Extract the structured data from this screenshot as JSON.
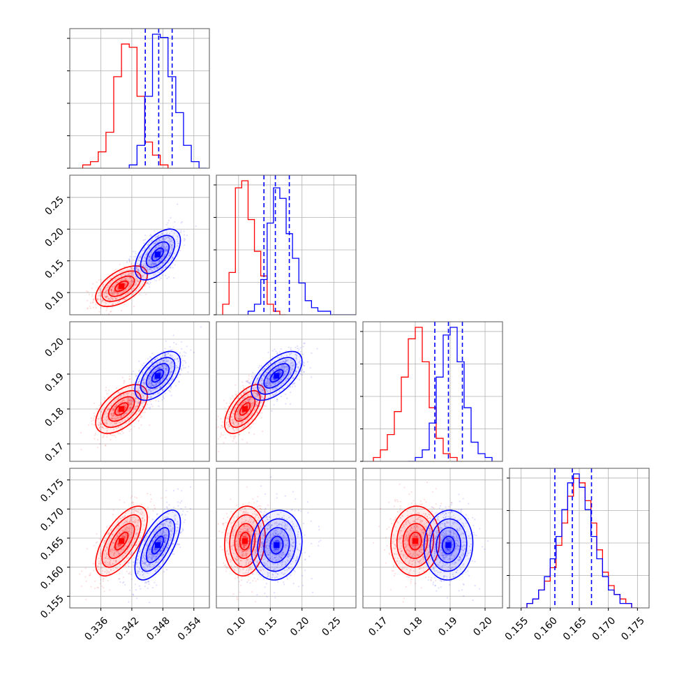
{
  "chart_data": {
    "type": "corner",
    "title": "",
    "parameters": [
      {
        "ticks": [
          0.336,
          0.342,
          0.348,
          0.354
        ],
        "tick_labels": [
          "0.336",
          "0.342",
          "0.348",
          "0.354"
        ],
        "range": [
          0.33,
          0.357
        ]
      },
      {
        "ticks": [
          0.1,
          0.15,
          0.2,
          0.25
        ],
        "tick_labels": [
          "0.10",
          "0.15",
          "0.20",
          "0.25"
        ],
        "range": [
          0.065,
          0.285
        ]
      },
      {
        "ticks": [
          0.17,
          0.18,
          0.19,
          0.2
        ],
        "tick_labels": [
          "0.17",
          "0.18",
          "0.19",
          "0.20"
        ],
        "range": [
          0.165,
          0.205
        ]
      },
      {
        "ticks": [
          0.155,
          0.16,
          0.165,
          0.17,
          0.175
        ],
        "tick_labels": [
          "0.155",
          "0.160",
          "0.165",
          "0.170",
          "0.175"
        ],
        "range": [
          0.153,
          0.177
        ]
      }
    ],
    "series": [
      {
        "color": "#ff0000",
        "means": [
          0.34,
          0.11,
          0.18,
          0.1645
        ],
        "stds": [
          0.0025,
          0.016,
          0.0035,
          0.003
        ],
        "correlations": [
          [
            0,
            1,
            0.55
          ],
          [
            0,
            2,
            0.55
          ],
          [
            0,
            3,
            0.65
          ],
          [
            1,
            2,
            0.6
          ],
          [
            1,
            3,
            0.1
          ],
          [
            2,
            3,
            0.05
          ]
        ],
        "histograms": [
          {
            "edges": [
              0.3325,
              0.334,
              0.3355,
              0.337,
              0.3385,
              0.34,
              0.3415,
              0.343,
              0.3445,
              0.346,
              0.3475,
              0.349
            ],
            "counts": [
              1,
              2,
              5,
              11,
              28,
              38,
              37,
              22,
              8,
              4,
              1
            ]
          },
          {
            "edges": [
              0.075,
              0.085,
              0.095,
              0.105,
              0.115,
              0.125,
              0.135,
              0.145,
              0.155,
              0.165,
              0.175
            ],
            "counts": [
              3,
              12,
              36,
              38,
              27,
              18,
              11,
              3,
              1,
              0
            ]
          },
          {
            "edges": [
              0.168,
              0.17,
              0.172,
              0.174,
              0.176,
              0.178,
              0.18,
              0.182,
              0.184,
              0.186,
              0.188,
              0.19,
              0.192
            ],
            "counts": [
              1,
              3,
              7,
              13,
              22,
              32,
              35,
              26,
              14,
              6,
              2,
              1
            ]
          },
          {
            "edges": [
              0.155,
              0.156,
              0.157,
              0.158,
              0.159,
              0.16,
              0.161,
              0.162,
              0.163,
              0.164,
              0.165,
              0.166,
              0.167,
              0.168,
              0.169,
              0.17,
              0.171,
              0.172,
              0.173,
              0.174,
              0.175
            ],
            "counts": [
              0,
              1,
              2,
              4,
              6,
              9,
              14,
              19,
              25,
              29,
              28,
              24,
              19,
              13,
              8,
              5,
              3,
              2,
              1,
              0
            ]
          }
        ]
      },
      {
        "color": "#0000ff",
        "means": [
          0.347,
          0.16,
          0.1895,
          0.1638
        ],
        "stds": [
          0.0022,
          0.02,
          0.0035,
          0.003
        ],
        "correlations": [
          [
            0,
            1,
            0.55
          ],
          [
            0,
            2,
            0.55
          ],
          [
            0,
            3,
            0.65
          ],
          [
            1,
            2,
            0.6
          ],
          [
            1,
            3,
            0.1
          ],
          [
            2,
            3,
            0.05
          ]
        ],
        "histograms": [
          {
            "edges": [
              0.3415,
              0.343,
              0.3445,
              0.346,
              0.3475,
              0.349,
              0.3505,
              0.352,
              0.3535,
              0.355,
              0.3565
            ],
            "counts": [
              1,
              7,
              22,
              41,
              40,
              28,
              17,
              7,
              2,
              0
            ]
          },
          {
            "edges": [
              0.115,
              0.125,
              0.135,
              0.145,
              0.155,
              0.165,
              0.175,
              0.185,
              0.195,
              0.205,
              0.215,
              0.225,
              0.235,
              0.245,
              0.255,
              0.265,
              0.275,
              0.285
            ],
            "counts": [
              1,
              3,
              10,
              26,
              36,
              33,
              23,
              16,
              9,
              4,
              2,
              1,
              1,
              0,
              0,
              0,
              0
            ]
          },
          {
            "edges": [
              0.178,
              0.18,
              0.182,
              0.184,
              0.186,
              0.188,
              0.19,
              0.192,
              0.194,
              0.196,
              0.198,
              0.2,
              0.202
            ],
            "counts": [
              0,
              1,
              3,
              10,
              22,
              33,
              35,
              26,
              14,
              5,
              2,
              1
            ]
          },
          {
            "edges": [
              0.155,
              0.156,
              0.157,
              0.158,
              0.159,
              0.16,
              0.161,
              0.162,
              0.163,
              0.164,
              0.165,
              0.166,
              0.167,
              0.168,
              0.169,
              0.17,
              0.171,
              0.172,
              0.173,
              0.174,
              0.175
            ],
            "counts": [
              0,
              1,
              2,
              4,
              7,
              11,
              16,
              22,
              28,
              30,
              27,
              22,
              16,
              11,
              7,
              4,
              3,
              1,
              1,
              0
            ]
          }
        ]
      }
    ],
    "quantile_lines": {
      "color": "#0000ff",
      "style": "dashed",
      "values": [
        [
          0.3446,
          0.3472,
          0.3498
        ],
        [
          0.14,
          0.158,
          0.18
        ],
        [
          0.1856,
          0.1895,
          0.1935
        ],
        [
          0.1608,
          0.1638,
          0.1671
        ]
      ]
    },
    "contour_levels_sigma": [
      0.5,
      1.0,
      1.5,
      2.0
    ],
    "grid": true,
    "legend": "none"
  }
}
